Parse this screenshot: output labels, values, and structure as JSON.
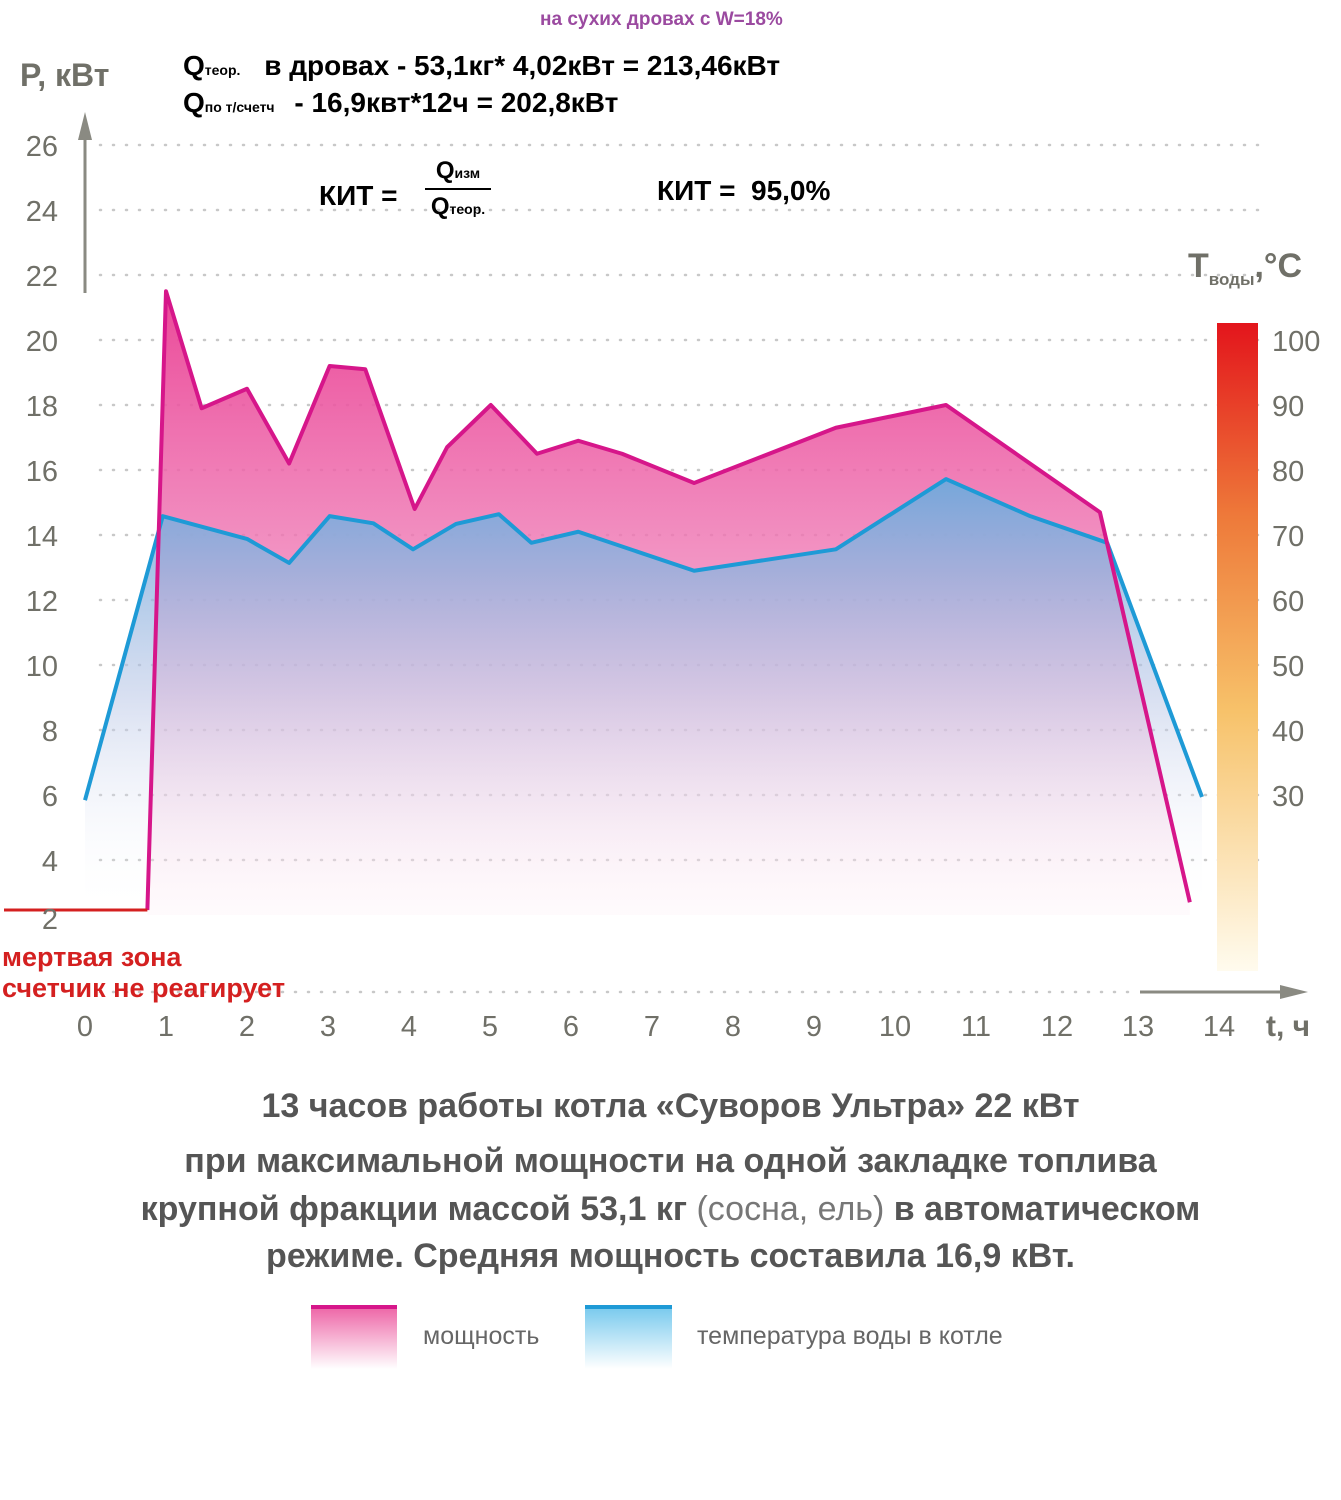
{
  "header": {
    "note": "на сухих дровах с W=18%",
    "q_theor_symbol": "Q",
    "q_theor_sub": "теор.",
    "q_theor_text": "в дровах - 53,1кг* 4,02кВт = 213,46кВт",
    "q_meter_symbol": "Q",
    "q_meter_sub": "по т/счетч",
    "q_meter_text": "- 16,9квт*12ч = 202,8кВт",
    "kit_label": "КИТ =",
    "kit_num_symbol": "Q",
    "kit_num_sub": "изм",
    "kit_den_symbol": "Q",
    "kit_den_sub": "теор.",
    "kit_result": "КИТ =  95,0%"
  },
  "dead_zone": {
    "line1": "мертвая зона",
    "line2": "счетчик не реагирует",
    "color": "#d42020"
  },
  "caption": {
    "line1": "13 часов работы котла «Суворов Ультра» 22 кВт",
    "line2": "при максимальной мощности на одной закладке  топлива",
    "line3a": "крупной фракции массой 53,1 кг",
    "line3b": "(сосна, ель)",
    "line3c": "в автоматическом",
    "line4": "режиме. Средняя мощность составила 16,9 кВт."
  },
  "legend": {
    "power": "мощность",
    "temp": "температура воды в котле"
  },
  "chart_data": {
    "type": "area",
    "xlabel": "t, ч",
    "ylabel": "P, кВт",
    "y2label": "T",
    "y2label_sub": "воды",
    "y2label_unit": ",°C",
    "xlim": [
      0,
      14
    ],
    "ylim": [
      2,
      26
    ],
    "y2lim": [
      30,
      100
    ],
    "xticks": [
      0,
      1,
      2,
      3,
      4,
      5,
      6,
      7,
      8,
      9,
      10,
      11,
      12,
      13,
      14
    ],
    "yticks": [
      2,
      4,
      6,
      8,
      10,
      12,
      14,
      16,
      18,
      20,
      22,
      24,
      26
    ],
    "y2ticks": [
      30,
      40,
      50,
      60,
      70,
      80,
      90,
      100
    ],
    "grid": true,
    "series": [
      {
        "name": "мощность",
        "axis": "left",
        "color": "#d6168a",
        "x": [
          0.77,
          1.0,
          1.44,
          2.0,
          2.52,
          3.02,
          3.46,
          4.07,
          4.47,
          5.01,
          5.58,
          6.09,
          6.63,
          7.52,
          9.27,
          10.63,
          12.53,
          13.64
        ],
        "y": [
          2.46,
          21.5,
          17.9,
          18.5,
          16.2,
          19.2,
          19.1,
          14.8,
          16.7,
          18.0,
          16.5,
          16.9,
          16.5,
          15.6,
          17.3,
          18.0,
          14.7,
          2.7
        ]
      },
      {
        "name": "температура воды в котле",
        "axis": "right",
        "color": "#1e9ad6",
        "x": [
          0,
          0.96,
          2.0,
          2.52,
          3.02,
          3.56,
          4.05,
          4.58,
          5.11,
          5.51,
          6.09,
          7.52,
          9.27,
          10.63,
          11.67,
          12.62,
          13.79
        ],
        "y": [
          29.2,
          72.9,
          69.4,
          65.7,
          72.9,
          71.8,
          67.8,
          71.7,
          73.2,
          68.8,
          70.5,
          64.5,
          67.8,
          78.6,
          72.9,
          68.8,
          29.7
        ]
      }
    ],
    "dead_zone_x": [
      -1,
      0.77
    ],
    "dead_zone_y": 2.46
  }
}
